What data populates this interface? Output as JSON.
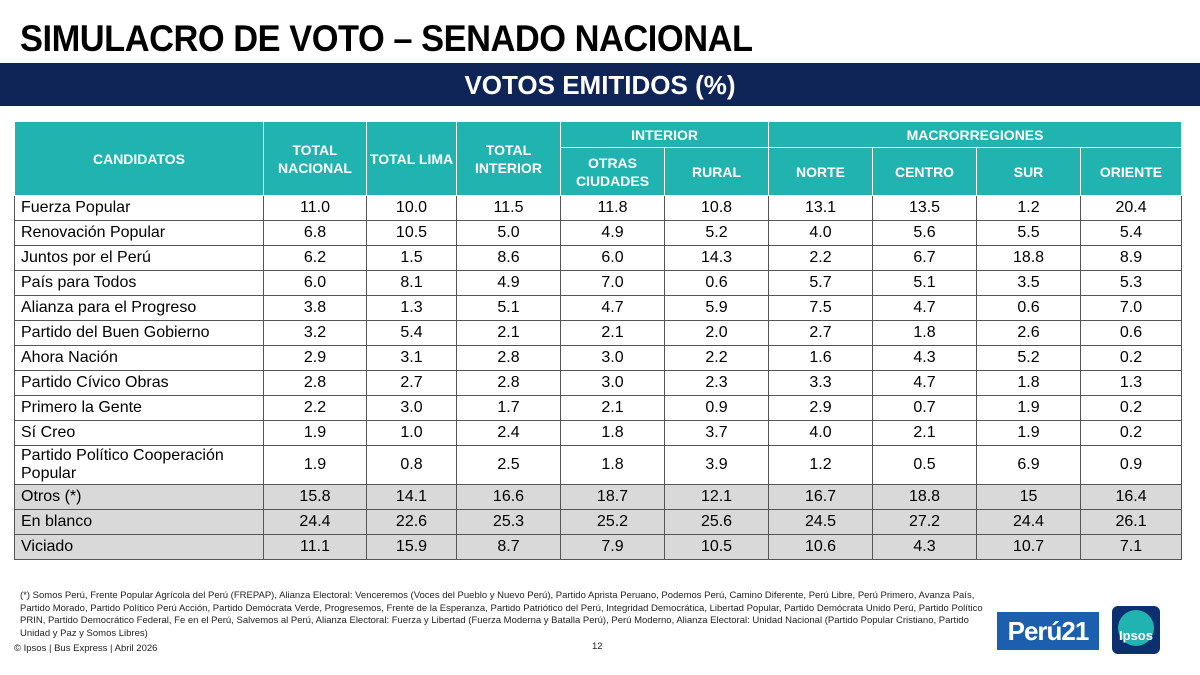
{
  "title": "SIMULACRO DE VOTO – SENADO NACIONAL",
  "subtitle": "VOTOS EMITIDOS (%)",
  "colors": {
    "banner": "#0f2557",
    "header": "#21b3b0",
    "grey_rows": "#d9d9d9"
  },
  "table": {
    "headers": {
      "candidatos": "CANDIDATOS",
      "total_nacional": "TOTAL NACIONAL",
      "total_lima": "TOTAL LIMA",
      "total_interior": "TOTAL INTERIOR",
      "interior": "INTERIOR",
      "otras_ciudades": "OTRAS CIUDADES",
      "rural": "RURAL",
      "macrorregiones": "MACRORREGIONES",
      "norte": "NORTE",
      "centro": "CENTRO",
      "sur": "SUR",
      "oriente": "ORIENTE"
    },
    "rows": [
      {
        "name": "Fuerza Popular",
        "values": [
          "11.0",
          "10.0",
          "11.5",
          "11.8",
          "10.8",
          "13.1",
          "13.5",
          "1.2",
          "20.4"
        ]
      },
      {
        "name": "Renovación Popular",
        "values": [
          "6.8",
          "10.5",
          "5.0",
          "4.9",
          "5.2",
          "4.0",
          "5.6",
          "5.5",
          "5.4"
        ]
      },
      {
        "name": "Juntos por el Perú",
        "values": [
          "6.2",
          "1.5",
          "8.6",
          "6.0",
          "14.3",
          "2.2",
          "6.7",
          "18.8",
          "8.9"
        ]
      },
      {
        "name": "País para Todos",
        "values": [
          "6.0",
          "8.1",
          "4.9",
          "7.0",
          "0.6",
          "5.7",
          "5.1",
          "3.5",
          "5.3"
        ]
      },
      {
        "name": "Alianza para el Progreso",
        "values": [
          "3.8",
          "1.3",
          "5.1",
          "4.7",
          "5.9",
          "7.5",
          "4.7",
          "0.6",
          "7.0"
        ]
      },
      {
        "name": "Partido del Buen Gobierno",
        "values": [
          "3.2",
          "5.4",
          "2.1",
          "2.1",
          "2.0",
          "2.7",
          "1.8",
          "2.6",
          "0.6"
        ]
      },
      {
        "name": "Ahora Nación",
        "values": [
          "2.9",
          "3.1",
          "2.8",
          "3.0",
          "2.2",
          "1.6",
          "4.3",
          "5.2",
          "0.2"
        ]
      },
      {
        "name": "Partido Cívico Obras",
        "values": [
          "2.8",
          "2.7",
          "2.8",
          "3.0",
          "2.3",
          "3.3",
          "4.7",
          "1.8",
          "1.3"
        ]
      },
      {
        "name": "Primero la Gente",
        "values": [
          "2.2",
          "3.0",
          "1.7",
          "2.1",
          "0.9",
          "2.9",
          "0.7",
          "1.9",
          "0.2"
        ]
      },
      {
        "name": "Sí Creo",
        "values": [
          "1.9",
          "1.0",
          "2.4",
          "1.8",
          "3.7",
          "4.0",
          "2.1",
          "1.9",
          "0.2"
        ]
      },
      {
        "name": "Partido Político Cooperación Popular",
        "values": [
          "1.9",
          "0.8",
          "2.5",
          "1.8",
          "3.9",
          "1.2",
          "0.5",
          "6.9",
          "0.9"
        ]
      },
      {
        "name": "Otros (*)",
        "values": [
          "15.8",
          "14.1",
          "16.6",
          "18.7",
          "12.1",
          "16.7",
          "18.8",
          "15",
          "16.4"
        ]
      },
      {
        "name": "En blanco",
        "values": [
          "24.4",
          "22.6",
          "25.3",
          "25.2",
          "25.6",
          "24.5",
          "27.2",
          "24.4",
          "26.1"
        ]
      },
      {
        "name": "Viciado",
        "values": [
          "11.1",
          "15.9",
          "8.7",
          "7.9",
          "10.5",
          "10.6",
          "4.3",
          "10.7",
          "7.1"
        ]
      }
    ]
  },
  "footnote": "(*) Somos Perú, Frente Popular Agrícola del Perú (FREPAP), Alianza Electoral: Venceremos (Voces del Pueblo y Nuevo Perú), Partido Aprista Peruano, Podemos Perú, Camino Diferente, Perú Libre, Perú Primero, Avanza País, Partido Morado, Partido Político Perú Acción, Partido Demócrata Verde, Progresemos, Frente de la Esperanza, Partido Patriótico del Perú, Integridad Democrática, Libertad Popular, Partido Demócrata Unido Perú, Partido Político PRIN, Partido Democrático Federal, Fe en el Perú, Salvemos al Perú, Alianza Electoral: Fuerza y Libertad (Fuerza Moderna y Batalla Perú), Perú Moderno, Alianza Electoral: Unidad Nacional (Partido Popular Cristiano, Partido Unidad y Paz y Somos Libres)",
  "copyright": "© Ipsos | Bus Express | Abril 2026",
  "page_number": "12",
  "logos": {
    "peru21": "Perú21",
    "ipsos": "Ipsos"
  }
}
